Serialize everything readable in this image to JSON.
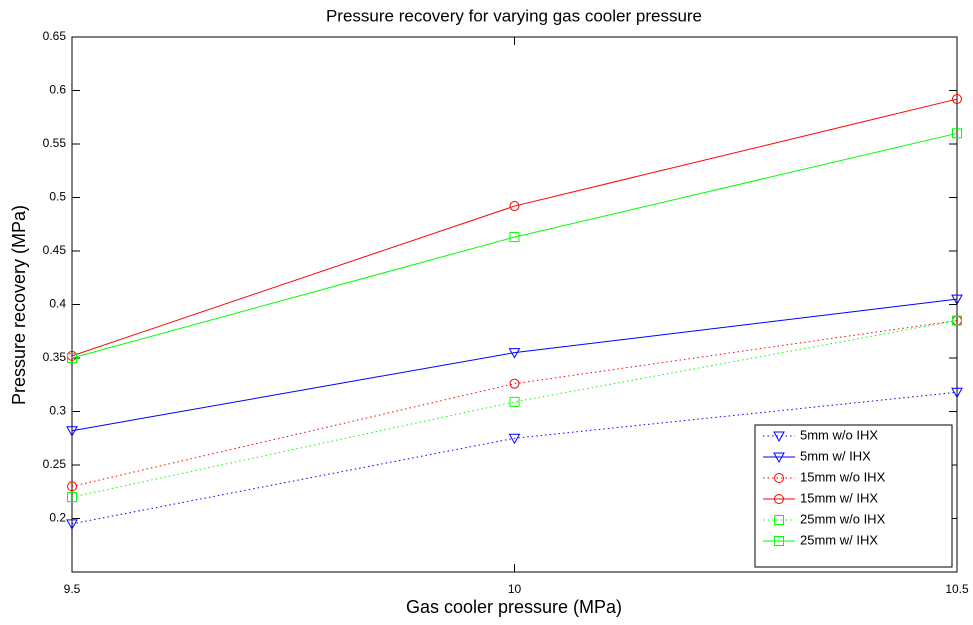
{
  "chart_data": {
    "type": "line",
    "title": "Pressure recovery for varying gas cooler pressure",
    "x_label": "Gas cooler pressure (MPa)",
    "y_label": "Pressure recovery (MPa)",
    "x": [
      9.5,
      10,
      10.5
    ],
    "xlim": [
      9.5,
      10.5
    ],
    "xticks": [
      9.5,
      10,
      10.5
    ],
    "ylim": [
      0.15,
      0.65
    ],
    "yticks": [
      0.2,
      0.25,
      0.3,
      0.35,
      0.4,
      0.45,
      0.5,
      0.55,
      0.6,
      0.65
    ],
    "legend": "lower right",
    "grid": false,
    "series": [
      {
        "name": "5mm w/o IHX",
        "color": "#0000ff",
        "line_style": "dotted",
        "marker": "triangle-down",
        "values": [
          0.195,
          0.275,
          0.318
        ]
      },
      {
        "name": "5mm w/ IHX",
        "color": "#0000ff",
        "line_style": "solid",
        "marker": "triangle-down",
        "values": [
          0.282,
          0.355,
          0.405
        ]
      },
      {
        "name": "15mm w/o IHX",
        "color": "#ff0000",
        "line_style": "dotted",
        "marker": "circle",
        "values": [
          0.23,
          0.326,
          0.385
        ]
      },
      {
        "name": "15mm w/ IHX",
        "color": "#ff0000",
        "line_style": "solid",
        "marker": "circle",
        "values": [
          0.352,
          0.492,
          0.592
        ]
      },
      {
        "name": "25mm w/o IHX",
        "color": "#00ff00",
        "line_style": "dotted",
        "marker": "square",
        "values": [
          0.22,
          0.309,
          0.385
        ]
      },
      {
        "name": "25mm w/ IHX",
        "color": "#00ff00",
        "line_style": "solid",
        "marker": "square",
        "values": [
          0.35,
          0.463,
          0.56
        ]
      }
    ]
  }
}
